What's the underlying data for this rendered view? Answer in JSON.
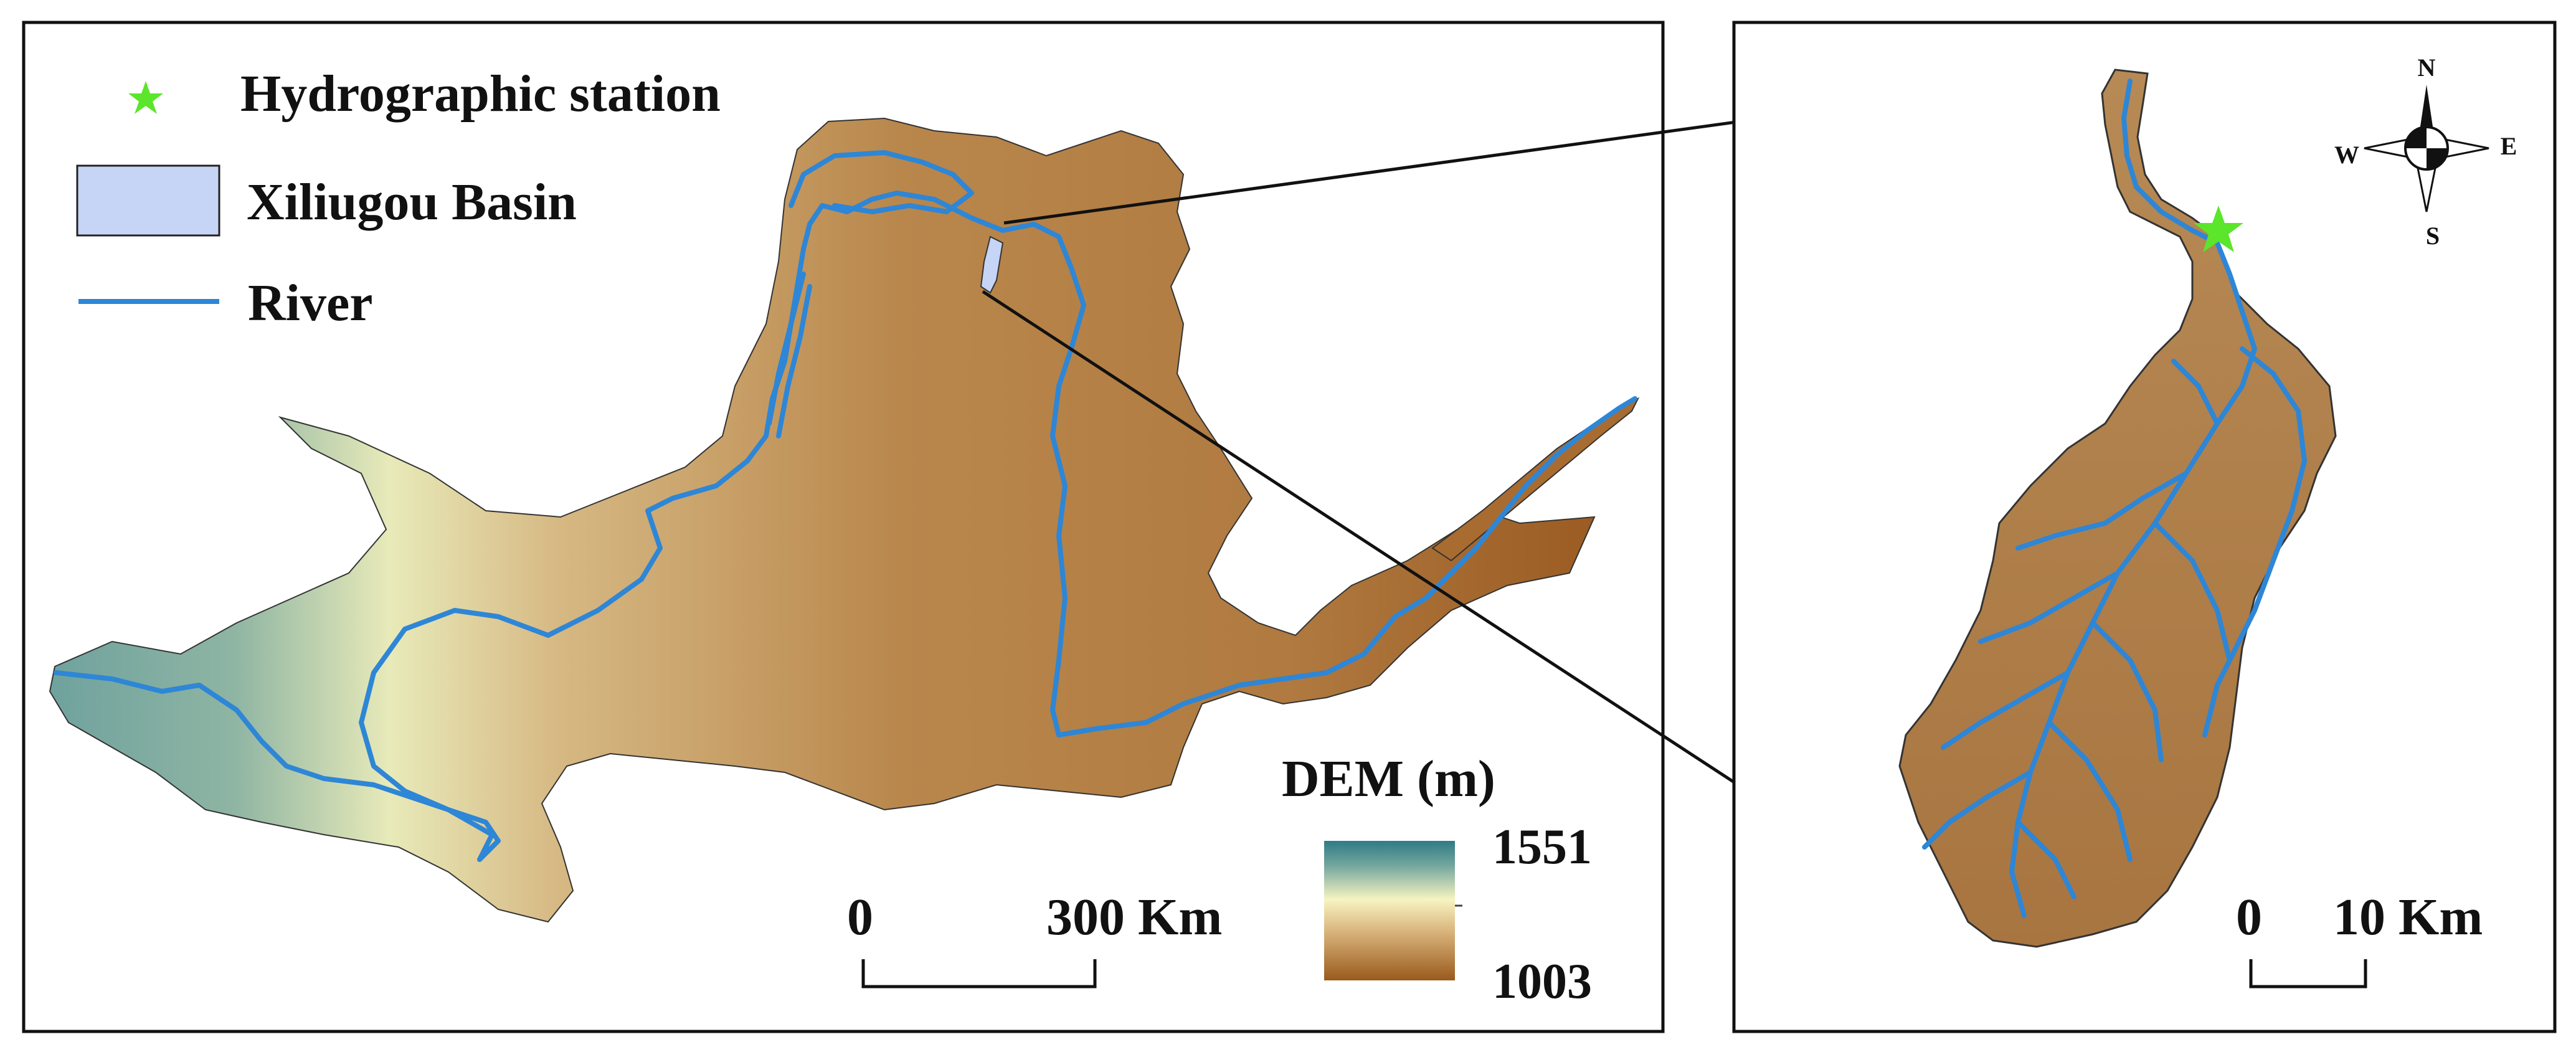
{
  "legend": {
    "station_label": "Hydrographic station",
    "basin_label": "Xiliugou Basin",
    "river_label": "River"
  },
  "dem": {
    "title": "DEM (m)",
    "max_label": "1551",
    "min_label": "1003",
    "colors": [
      "#2f7b85",
      "#f7f4c2",
      "#9a5a1d"
    ]
  },
  "scalebar_main": {
    "zero": "0",
    "end": "300 Km"
  },
  "scalebar_inset": {
    "zero": "0",
    "end": "10 Km"
  },
  "compass": {
    "n": "N",
    "s": "S",
    "e": "E",
    "w": "W"
  },
  "colors": {
    "river": "#2e86d6",
    "station": "#5be52b",
    "basin_fill": "#c6d4f6",
    "frame": "#111111"
  }
}
